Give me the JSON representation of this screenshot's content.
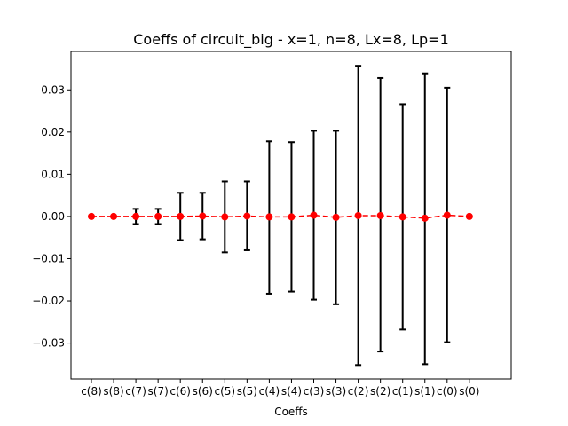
{
  "chart_data": {
    "type": "scatter",
    "title": "Coeffs of circuit_big - x=1, n=8, Lx=8, Lp=1",
    "xlabel": "Coeffs",
    "ylabel": "",
    "categories": [
      "c(8)",
      "s(8)",
      "c(7)",
      "s(7)",
      "c(6)",
      "s(6)",
      "c(5)",
      "s(5)",
      "c(4)",
      "s(4)",
      "c(3)",
      "s(3)",
      "c(2)",
      "s(2)",
      "c(1)",
      "s(1)",
      "c(0)",
      "s(0)"
    ],
    "series": [
      {
        "values": [
          0.0,
          0.0,
          0.0,
          0.0,
          0.0,
          0.0001,
          -0.0001,
          0.0001,
          -0.0001,
          -0.0001,
          0.0003,
          -0.0002,
          0.0002,
          0.0002,
          -0.0001,
          -0.0004,
          0.0003,
          0.0
        ],
        "err_low": [
          0.0,
          0.0,
          -0.0018,
          -0.0018,
          -0.0056,
          -0.0054,
          -0.0085,
          -0.008,
          -0.0183,
          -0.0178,
          -0.0197,
          -0.0208,
          -0.0352,
          -0.032,
          -0.0268,
          -0.035,
          -0.0298,
          0.0
        ],
        "err_high": [
          0.0,
          0.0,
          0.0018,
          0.0018,
          0.0056,
          0.0056,
          0.0083,
          0.0083,
          0.0178,
          0.0176,
          0.0203,
          0.0203,
          0.0357,
          0.0328,
          0.0266,
          0.0339,
          0.0305,
          0.0
        ]
      }
    ],
    "yticks": [
      "-0.03",
      "-0.02",
      "-0.01",
      "0.00",
      "0.01",
      "0.02",
      "0.03"
    ],
    "ylim": [
      -0.0385,
      0.0391
    ],
    "grid": false,
    "colors": {
      "marker": "#ff0000",
      "line": "#ff0000",
      "errorbar": "#000000"
    }
  }
}
